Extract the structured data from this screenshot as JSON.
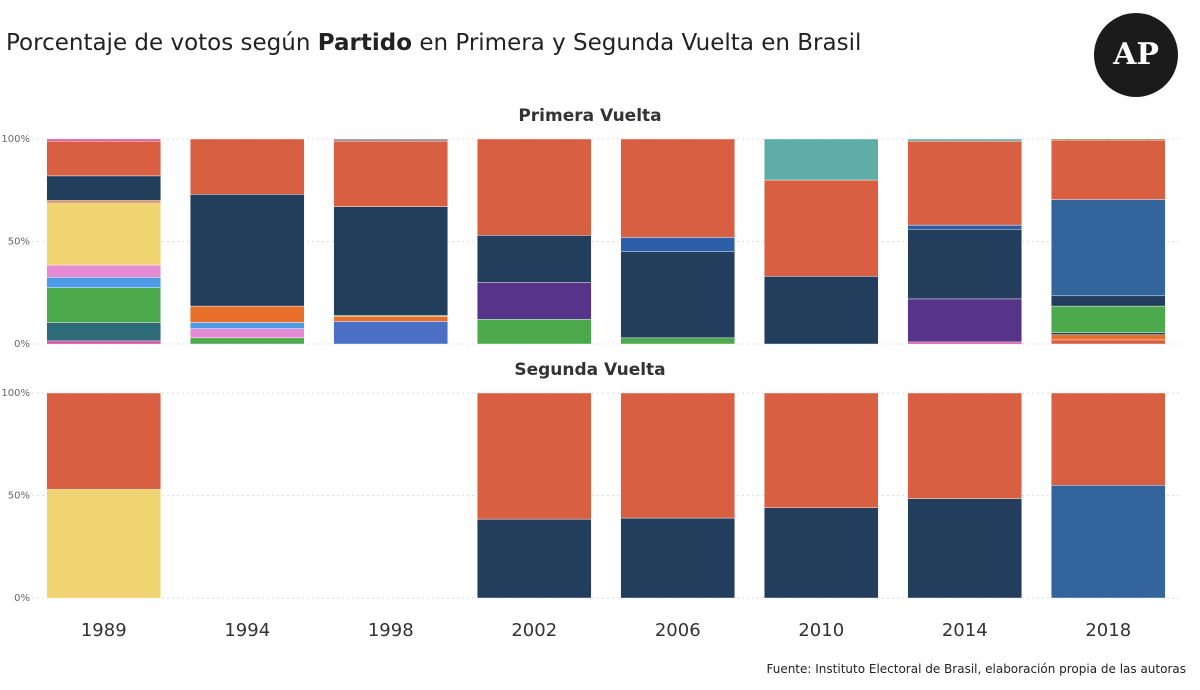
{
  "title": {
    "before": "Porcentaje de votos según",
    "bold": "Partido",
    "after": "en Primera y Segunda Vuelta en Brasil"
  },
  "logo": "AP",
  "source": "Fuente: Instituto Electoral de Brasil, elaboración propia de las autoras",
  "chart_data": [
    {
      "type": "stacked_bar",
      "title": "Primera Vuelta",
      "ylim": [
        0,
        100
      ],
      "yticks": [
        {
          "value": 0,
          "label": "0%"
        },
        {
          "value": 50,
          "label": "50%"
        },
        {
          "value": 100,
          "label": "100%"
        }
      ],
      "grid": true,
      "series": [
        {
          "values": [
            1.5,
            3,
            11,
            12,
            3,
            33,
            1,
            2
          ],
          "colors": [
            "#d64fa0",
            "#4caa4c",
            "#4a6fc4",
            "#4caa4c",
            "#4caa4c",
            "#233e5c",
            "#d64fa0",
            "#d95f43"
          ]
        },
        {
          "values": [
            9,
            4.5,
            2.5,
            18,
            42,
            47,
            21,
            2.5
          ],
          "colors": [
            "#2e6b78",
            "#e58bd6",
            "#e8702a",
            "#55348a",
            "#233e5c",
            "#d95f43",
            "#55348a",
            "#e8702a"
          ]
        },
        {
          "values": [
            17,
            3,
            0.5,
            23,
            7,
            20,
            34,
            1
          ],
          "colors": [
            "#4caa4c",
            "#4d9be6",
            "#4caa4c",
            "#233e5c",
            "#2d5fa8",
            "#5fada6",
            "#233e5c",
            "#233e5c"
          ]
        },
        {
          "values": [
            5,
            8,
            53,
            47,
            48,
            null,
            2,
            13
          ],
          "colors": [
            "#4d9be6",
            "#e8702a",
            "#233e5c",
            "#d95f43",
            "#d95f43",
            null,
            "#2d5fa8",
            "#4caa4c"
          ]
        },
        {
          "values": [
            6,
            54.5,
            32,
            null,
            null,
            null,
            41,
            5
          ],
          "colors": [
            "#e58bd6",
            "#233e5c",
            "#d95f43",
            null,
            null,
            null,
            "#d95f43",
            "#233e5c"
          ]
        },
        {
          "values": [
            30,
            27,
            1,
            null,
            null,
            null,
            1,
            47
          ],
          "colors": [
            "#f0d472",
            "#d95f43",
            "#8a8a8a",
            null,
            null,
            null,
            "#5fada6",
            "#33649b"
          ]
        },
        {
          "values": [
            1.5,
            null,
            null,
            null,
            null,
            null,
            null,
            29
          ],
          "colors": [
            "#e8a060",
            null,
            null,
            null,
            null,
            null,
            null,
            "#d95f43"
          ]
        },
        {
          "values": [
            12,
            null,
            null,
            null,
            null,
            null,
            null,
            0.5
          ],
          "colors": [
            "#233e5c",
            null,
            null,
            null,
            null,
            null,
            null,
            "#6b7a2a"
          ]
        },
        {
          "values": [
            17,
            null,
            null,
            null,
            null,
            null,
            null,
            null
          ],
          "colors": [
            "#d95f43",
            null,
            null,
            null,
            null,
            null,
            null,
            null
          ]
        },
        {
          "values": [
            1,
            null,
            null,
            null,
            null,
            null,
            null,
            null
          ],
          "colors": [
            "#d64fa0",
            null,
            null,
            null,
            null,
            null,
            null,
            null
          ]
        }
      ]
    },
    {
      "type": "stacked_bar",
      "title": "Segunda Vuelta",
      "categories": [
        "1989",
        "1994",
        "1998",
        "2002",
        "2006",
        "2010",
        "2014",
        "2018"
      ],
      "ylim": [
        0,
        100
      ],
      "yticks": [
        {
          "value": 0,
          "label": "0%"
        },
        {
          "value": 50,
          "label": "50%"
        },
        {
          "value": 100,
          "label": "100%"
        }
      ],
      "grid": true,
      "series": [
        {
          "values": [
            53,
            null,
            null,
            38.5,
            39,
            44,
            48.5,
            55
          ],
          "colors": [
            "#f0d472",
            null,
            null,
            "#233e5c",
            "#233e5c",
            "#233e5c",
            "#233e5c",
            "#33649b"
          ]
        },
        {
          "values": [
            47,
            null,
            null,
            61.5,
            61,
            56,
            51.5,
            45
          ],
          "colors": [
            "#d95f43",
            null,
            null,
            "#d95f43",
            "#d95f43",
            "#d95f43",
            "#d95f43",
            "#d95f43"
          ]
        }
      ]
    }
  ]
}
